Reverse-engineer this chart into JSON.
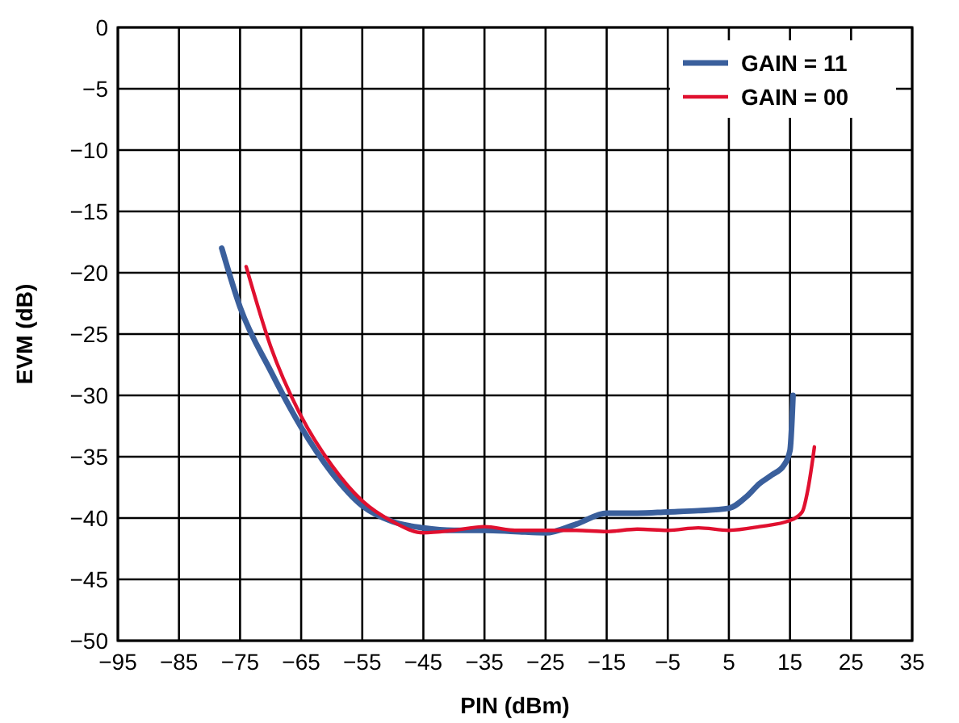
{
  "chart_data": {
    "type": "line",
    "xlabel": "PIN (dBm)",
    "ylabel": "EVM (dB)",
    "xlim": [
      -95,
      35
    ],
    "xticks": [
      -95,
      -85,
      -75,
      -65,
      -55,
      -45,
      -35,
      -25,
      -15,
      -5,
      5,
      15,
      25,
      35
    ],
    "ylim": [
      -50,
      0
    ],
    "yticks": [
      -50,
      -45,
      -40,
      -35,
      -30,
      -25,
      -20,
      -15,
      -10,
      -5,
      0
    ],
    "grid": true,
    "legend": "top right",
    "marker": "none",
    "line_style": "solid",
    "series": [
      {
        "name": "GAIN = 11",
        "color": "#3a5f9c",
        "x": [
          -78,
          -75,
          -70,
          -65,
          -60,
          -55,
          -50,
          -45,
          -40,
          -35,
          -30,
          -25,
          -20,
          -15,
          -10,
          -5,
          0,
          5,
          8,
          10,
          12,
          14,
          15,
          15.5
        ],
        "values": [
          -18,
          -22.8,
          -28,
          -32.6,
          -36.3,
          -39,
          -40.3,
          -40.8,
          -41,
          -41,
          -41.1,
          -41.2,
          -40.5,
          -39.6,
          -39.6,
          -39.5,
          -39.4,
          -39.2,
          -38.2,
          -37.2,
          -36.5,
          -35.7,
          -34.5,
          -30
        ]
      },
      {
        "name": "GAIN = 00",
        "color": "#e0102f",
        "x": [
          -74,
          -70,
          -65,
          -60,
          -55,
          -50,
          -45,
          -40,
          -35,
          -30,
          -25,
          -20,
          -15,
          -10,
          -5,
          0,
          5,
          10,
          15,
          17,
          18,
          19
        ],
        "values": [
          -19.5,
          -26,
          -31.7,
          -35.7,
          -38.6,
          -40.3,
          -41.2,
          -41,
          -40.7,
          -41,
          -41,
          -41,
          -41.1,
          -40.9,
          -41,
          -40.8,
          -41,
          -40.7,
          -40.2,
          -39.5,
          -37.5,
          -34.2
        ]
      }
    ]
  }
}
